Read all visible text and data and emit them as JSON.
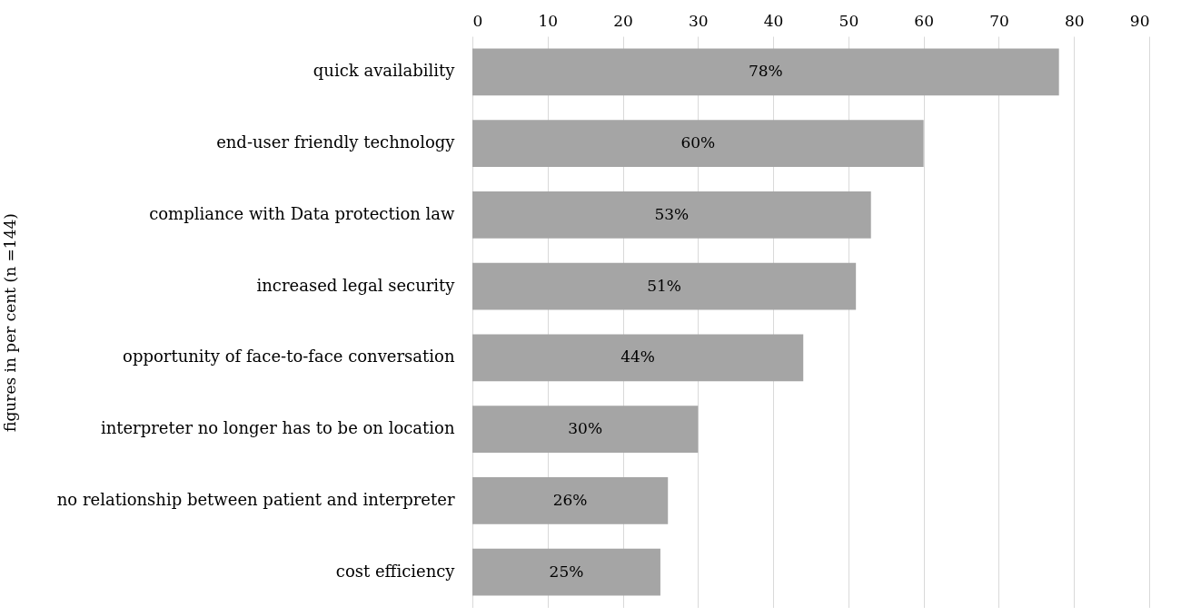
{
  "chart_data": {
    "type": "bar",
    "orientation": "horizontal",
    "ylabel": "figures in per cent (n =144)",
    "categories": [
      "quick availability",
      "end-user friendly technology",
      "compliance with Data protection law",
      "increased legal security",
      "opportunity of face-to-face conversation",
      "interpreter no longer has to be on location",
      "no relationship between patient and interpreter",
      "cost efficiency"
    ],
    "values": [
      78,
      60,
      53,
      51,
      44,
      30,
      26,
      25
    ],
    "value_labels": [
      "78%",
      "60%",
      "53%",
      "51%",
      "44%",
      "30%",
      "26%",
      "25%"
    ],
    "color": "#a5a5a5",
    "xlim": [
      0,
      90
    ],
    "xticks": [
      0,
      10,
      20,
      30,
      40,
      50,
      60,
      70,
      80,
      90
    ],
    "grid": "x"
  }
}
